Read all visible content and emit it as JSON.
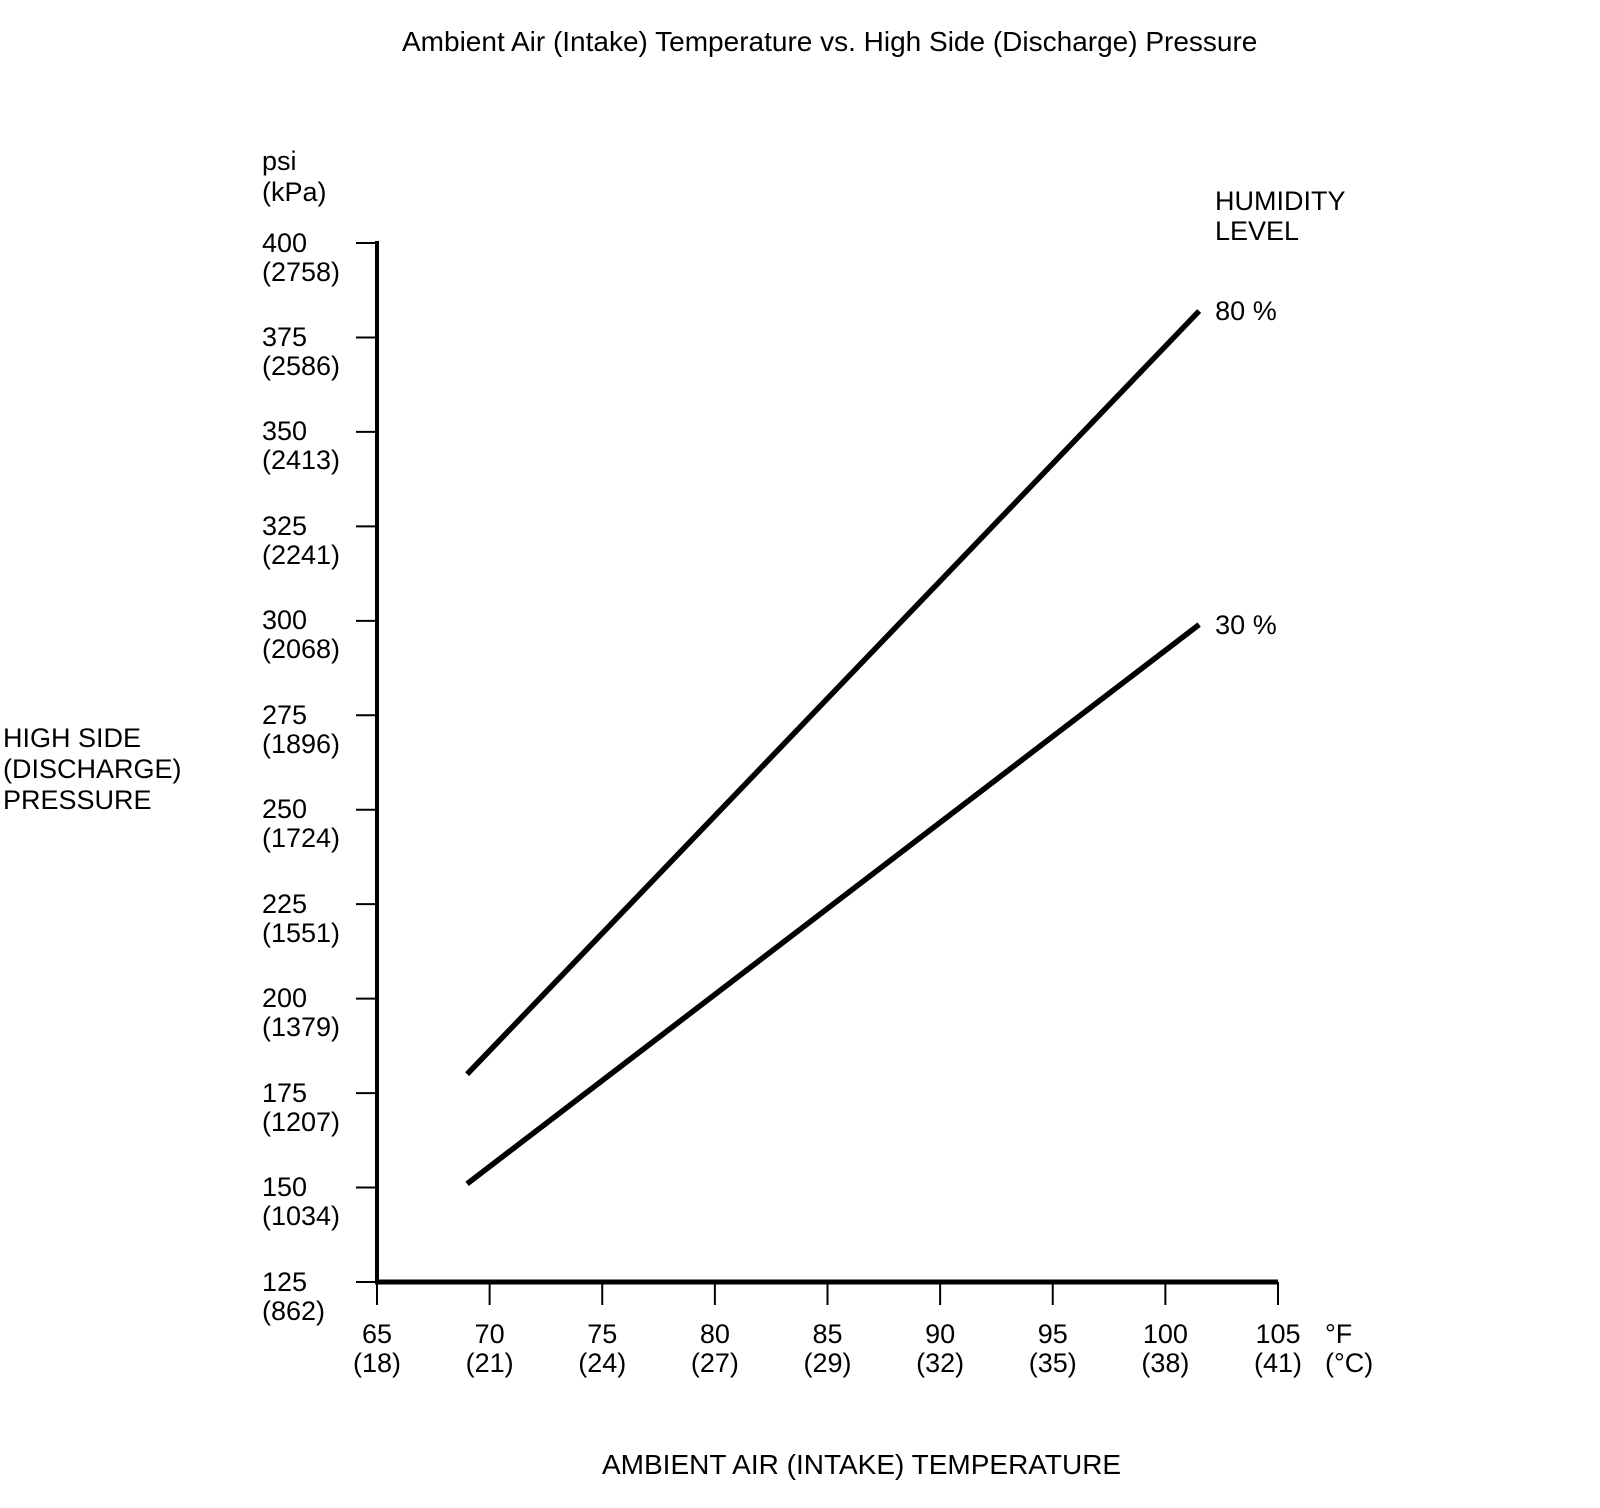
{
  "title": "Ambient Air (Intake) Temperature vs. High Side (Discharge) Pressure",
  "y_axis": {
    "unit_line1": "psi",
    "unit_line2": "(kPa)",
    "label_line1": "HIGH SIDE",
    "label_line2": "(DISCHARGE)",
    "label_line3": "PRESSURE"
  },
  "x_axis": {
    "label": "AMBIENT AIR (INTAKE) TEMPERATURE",
    "unit_line1": "°F",
    "unit_line2": "(°C)"
  },
  "legend": {
    "title_line1": "HUMIDITY",
    "title_line2": "LEVEL"
  },
  "chart_data": {
    "type": "line",
    "title": "Ambient Air (Intake) Temperature vs. High Side (Discharge) Pressure",
    "xlabel": "AMBIENT AIR (INTAKE) TEMPERATURE",
    "ylabel": "HIGH SIDE (DISCHARGE) PRESSURE",
    "x_unit_primary": "°F",
    "x_unit_secondary": "°C",
    "y_unit_primary": "psi",
    "y_unit_secondary": "kPa",
    "xlim": [
      65,
      105
    ],
    "ylim": [
      125,
      400
    ],
    "x_ticks_f": [
      65,
      70,
      75,
      80,
      85,
      90,
      95,
      100,
      105
    ],
    "x_ticks_c": [
      18,
      21,
      24,
      27,
      29,
      32,
      35,
      38,
      41
    ],
    "y_ticks_psi": [
      400,
      375,
      350,
      325,
      300,
      275,
      250,
      225,
      200,
      175,
      150,
      125
    ],
    "y_ticks_kpa": [
      2758,
      2586,
      2413,
      2241,
      2068,
      1896,
      1724,
      1551,
      1379,
      1207,
      1034,
      862
    ],
    "grid": false,
    "legend_title": "HUMIDITY LEVEL",
    "legend_position": "right-of-line-ends",
    "line_color": "#000000",
    "series": [
      {
        "name": "80 %",
        "points": [
          [
            69,
            180
          ],
          [
            101.5,
            382
          ]
        ]
      },
      {
        "name": "30 %",
        "points": [
          [
            69,
            151
          ],
          [
            101.5,
            299
          ]
        ]
      }
    ]
  }
}
